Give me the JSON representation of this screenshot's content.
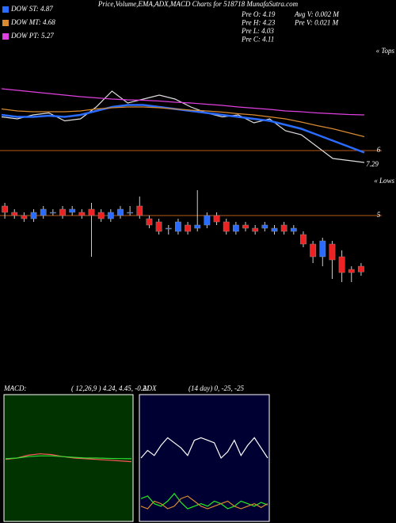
{
  "chart_data": [
    {
      "type": "line",
      "title": "Price,Volume,EMA,ADX,MACD Charts for 518718 MunafaSutra.com",
      "annotations": [
        "Pre  O: 4.19",
        "Pre  H: 4.23",
        "Pre  L: 4.03",
        "Pre  C: 4.11",
        "Avg V: 0.002  M",
        "Pre  V: 0.021 M"
      ],
      "price_label": "7.29",
      "corner_label": "« Tops",
      "ylim": [
        5.5,
        8.5
      ],
      "yticks": [
        6
      ],
      "grid_color": "#b85c1a",
      "background": "#000000",
      "series": [
        {
          "color": "#dddddd",
          "values": [
            6.85,
            6.8,
            6.9,
            6.95,
            6.75,
            6.8,
            7.1,
            7.5,
            7.2,
            7.3,
            7.4,
            7.3,
            7.1,
            6.95,
            6.85,
            6.9,
            6.7,
            6.8,
            6.5,
            6.4,
            6.1,
            5.8,
            5.75,
            5.7
          ]
        },
        {
          "name": "DOW ST: 4.87",
          "color": "#2a6cff",
          "values": [
            6.9,
            6.85,
            6.85,
            6.88,
            6.85,
            6.9,
            7.0,
            7.1,
            7.15,
            7.15,
            7.1,
            7.05,
            7.0,
            6.95,
            6.9,
            6.85,
            6.8,
            6.75,
            6.65,
            6.55,
            6.4,
            6.25,
            6.1,
            5.95
          ]
        },
        {
          "name": "DOW MT: 4.68",
          "color": "#d88a30",
          "values": [
            7.05,
            7.0,
            6.98,
            6.98,
            6.98,
            7.0,
            7.05,
            7.08,
            7.1,
            7.1,
            7.08,
            7.05,
            7.02,
            7.0,
            6.97,
            6.93,
            6.9,
            6.85,
            6.8,
            6.72,
            6.63,
            6.55,
            6.45,
            6.35
          ]
        },
        {
          "name": "DOW PT: 5.27",
          "color": "#e040e0",
          "values": [
            7.56,
            7.52,
            7.48,
            7.44,
            7.4,
            7.36,
            7.33,
            7.3,
            7.28,
            7.27,
            7.25,
            7.22,
            7.2,
            7.17,
            7.14,
            7.1,
            7.07,
            7.04,
            7.0,
            6.98,
            6.95,
            6.93,
            6.91,
            6.9
          ]
        }
      ]
    },
    {
      "type": "candlestick",
      "corner_label": "« Lows",
      "ylim": [
        2.4,
        5.6
      ],
      "yticks": [
        5
      ],
      "grid_color": "#b85c1a",
      "background": "#000000",
      "up_color": "#2a6cff",
      "down_color": "#ee2222",
      "open": [
        5.15,
        5.05,
        5.0,
        4.95,
        5.0,
        5.05,
        5.1,
        5.05,
        5.05,
        5.1,
        5.05,
        4.95,
        5.0,
        5.05,
        5.15,
        4.95,
        4.9,
        4.8,
        4.75,
        4.85,
        4.8,
        4.85,
        5.0,
        4.9,
        4.75,
        4.85,
        4.8,
        4.8,
        4.75,
        4.85,
        4.75,
        4.7,
        4.55,
        4.35,
        4.55,
        4.35,
        4.15,
        4.2
      ],
      "high": [
        5.2,
        5.1,
        5.05,
        5.1,
        5.15,
        5.1,
        5.15,
        5.15,
        5.1,
        5.2,
        5.1,
        5.1,
        5.15,
        5.15,
        5.3,
        5.0,
        4.95,
        4.85,
        4.95,
        4.9,
        5.4,
        5.05,
        5.05,
        4.95,
        4.9,
        4.9,
        4.85,
        4.9,
        4.85,
        4.9,
        4.85,
        4.75,
        4.6,
        4.65,
        4.6,
        4.45,
        4.2,
        4.25
      ],
      "low": [
        4.95,
        4.95,
        4.9,
        4.9,
        4.95,
        5.0,
        4.95,
        5.0,
        4.95,
        4.35,
        4.9,
        4.9,
        4.95,
        5.0,
        4.95,
        4.8,
        4.7,
        4.7,
        4.7,
        4.7,
        4.75,
        4.8,
        4.85,
        4.7,
        4.7,
        4.75,
        4.7,
        4.75,
        4.7,
        4.7,
        4.7,
        4.5,
        4.25,
        4.2,
        4.0,
        3.95,
        3.95,
        4.05
      ],
      "close": [
        5.05,
        5.0,
        4.95,
        5.05,
        5.1,
        5.05,
        5.0,
        5.1,
        5.0,
        5.0,
        4.95,
        5.05,
        5.1,
        5.05,
        5.0,
        4.85,
        4.75,
        4.8,
        4.9,
        4.75,
        4.85,
        5.0,
        4.9,
        4.75,
        4.85,
        4.8,
        4.75,
        4.85,
        4.8,
        4.75,
        4.8,
        4.55,
        4.35,
        4.6,
        4.3,
        4.1,
        4.1,
        4.11
      ]
    },
    {
      "type": "line",
      "title": "MACD:",
      "subtitle": "( 12,26,9 ) 4.24, 4.45, -0.21",
      "ylim": [
        0,
        9
      ],
      "background": "#003300",
      "series": [
        {
          "color": "#ff5555",
          "values": [
            4.4,
            4.5,
            4.7,
            4.8,
            4.75,
            4.6,
            4.5,
            4.45,
            4.4,
            4.35,
            4.3,
            4.24
          ]
        },
        {
          "color": "#33dd33",
          "values": [
            4.45,
            4.5,
            4.6,
            4.65,
            4.65,
            4.6,
            4.55,
            4.5,
            4.5,
            4.47,
            4.46,
            4.45
          ]
        }
      ]
    },
    {
      "type": "line",
      "title": "ADX",
      "subtitle": "(14 day) 0, -25, -25",
      "ylim": [
        0,
        100
      ],
      "background": "#000033",
      "series": [
        {
          "color": "#ffffff",
          "values": [
            50,
            56,
            52,
            60,
            66,
            62,
            58,
            52,
            64,
            66,
            64,
            62,
            50,
            55,
            64,
            52,
            60,
            66,
            58,
            50
          ]
        },
        {
          "color": "#22ee22",
          "values": [
            18,
            20,
            14,
            12,
            16,
            22,
            15,
            10,
            12,
            14,
            12,
            16,
            14,
            10,
            12,
            16,
            14,
            12,
            15,
            13
          ]
        },
        {
          "color": "#d88a30",
          "values": [
            12,
            10,
            16,
            14,
            10,
            12,
            18,
            20,
            16,
            12,
            10,
            12,
            14,
            16,
            12,
            10,
            12,
            14,
            11,
            14
          ]
        }
      ]
    }
  ]
}
